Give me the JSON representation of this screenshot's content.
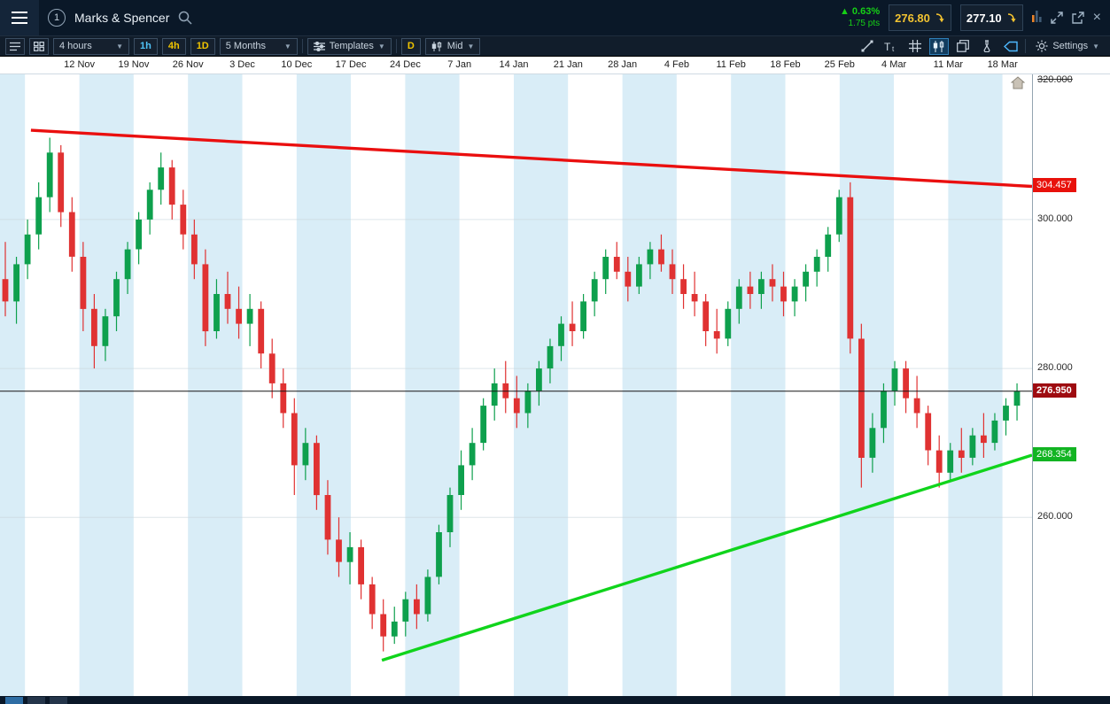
{
  "top_bar": {
    "title": "Marks & Spencer",
    "link_badge": "1",
    "change_pct": "0.63%",
    "change_pts": "1.75 pts",
    "sell": "276.80",
    "buy": "277.10"
  },
  "toolbar": {
    "interval": "4 hours",
    "quick_intervals": [
      "1h",
      "4h",
      "1D"
    ],
    "range": "5 Months",
    "templates": "Templates",
    "period_letter": "D",
    "price_type": "Mid",
    "settings": "Settings"
  },
  "chart_data": {
    "type": "candlestick",
    "title": "Marks & Spencer",
    "x_labels": [
      "12 Nov",
      "19 Nov",
      "26 Nov",
      "3 Dec",
      "10 Dec",
      "17 Dec",
      "24 Dec",
      "7 Jan",
      "14 Jan",
      "21 Jan",
      "28 Jan",
      "4 Feb",
      "11 Feb",
      "18 Feb",
      "25 Feb",
      "4 Mar",
      "11 Mar",
      "18 Mar"
    ],
    "y_ticks": [
      {
        "label": "320.000",
        "value": 320,
        "struck": true
      },
      {
        "label": "300.000",
        "value": 300
      },
      {
        "label": "280.000",
        "value": 280
      },
      {
        "label": "260.000",
        "value": 260
      }
    ],
    "ylim": [
      236,
      319.5
    ],
    "grid": true,
    "colors": {
      "up": "#0ea04d",
      "down": "#e03232",
      "band": "#d9edf7"
    },
    "current_price": 276.95,
    "price_labels": [
      {
        "label": "304.457",
        "value": 304.457,
        "color": "#e8110b",
        "name": "resistance-price-label"
      },
      {
        "label": "276.950",
        "value": 276.95,
        "color": "#9e0b10",
        "bold": true,
        "name": "current-price-label"
      },
      {
        "label": "268.354",
        "value": 268.354,
        "color": "#12b422",
        "name": "support-price-label"
      }
    ],
    "trendlines": [
      {
        "name": "resistance",
        "color": "#ea0f0f",
        "x1": 0.03,
        "price1": 312,
        "x2": 1,
        "price2": 304.457
      },
      {
        "name": "support",
        "color": "#10d41c",
        "x1": 0.37,
        "price1": 240.8,
        "x2": 1,
        "price2": 268.354
      }
    ],
    "candles": [
      [
        292,
        297,
        287,
        289
      ],
      [
        289,
        295,
        286,
        294
      ],
      [
        294,
        300,
        292,
        298
      ],
      [
        298,
        305,
        296,
        303
      ],
      [
        303,
        311,
        301,
        309
      ],
      [
        309,
        310,
        299,
        301
      ],
      [
        301,
        303,
        293,
        295
      ],
      [
        295,
        297,
        285,
        288
      ],
      [
        288,
        290,
        280,
        283
      ],
      [
        283,
        288,
        281,
        287
      ],
      [
        287,
        293,
        285,
        292
      ],
      [
        292,
        297,
        290,
        296
      ],
      [
        296,
        301,
        294,
        300
      ],
      [
        300,
        305,
        298,
        304
      ],
      [
        304,
        309,
        302,
        307
      ],
      [
        307,
        308,
        300,
        302
      ],
      [
        302,
        304,
        296,
        298
      ],
      [
        298,
        300,
        292,
        294
      ],
      [
        294,
        296,
        283,
        285
      ],
      [
        285,
        292,
        284,
        290
      ],
      [
        290,
        293,
        286,
        288
      ],
      [
        288,
        291,
        284,
        286
      ],
      [
        286,
        290,
        283,
        288
      ],
      [
        288,
        289,
        280,
        282
      ],
      [
        282,
        284,
        276,
        278
      ],
      [
        278,
        280,
        272,
        274
      ],
      [
        274,
        276,
        263,
        267
      ],
      [
        267,
        272,
        265,
        270
      ],
      [
        270,
        271,
        261,
        263
      ],
      [
        263,
        265,
        255,
        257
      ],
      [
        257,
        260,
        252,
        254
      ],
      [
        254,
        258,
        251,
        256
      ],
      [
        256,
        257,
        249,
        251
      ],
      [
        251,
        252,
        245,
        247
      ],
      [
        247,
        249,
        242,
        244
      ],
      [
        244,
        248,
        243,
        246
      ],
      [
        246,
        250,
        244,
        249
      ],
      [
        249,
        251,
        245,
        247
      ],
      [
        247,
        253,
        246,
        252
      ],
      [
        252,
        259,
        251,
        258
      ],
      [
        258,
        264,
        256,
        263
      ],
      [
        263,
        269,
        261,
        267
      ],
      [
        267,
        272,
        265,
        270
      ],
      [
        270,
        276,
        269,
        275
      ],
      [
        275,
        280,
        273,
        278
      ],
      [
        278,
        281,
        274,
        276
      ],
      [
        276,
        279,
        272,
        274
      ],
      [
        274,
        278,
        272,
        277
      ],
      [
        277,
        281,
        275,
        280
      ],
      [
        280,
        284,
        278,
        283
      ],
      [
        283,
        287,
        281,
        286
      ],
      [
        286,
        289,
        283,
        285
      ],
      [
        285,
        290,
        284,
        289
      ],
      [
        289,
        293,
        287,
        292
      ],
      [
        292,
        296,
        290,
        295
      ],
      [
        295,
        297,
        292,
        293
      ],
      [
        293,
        295,
        289,
        291
      ],
      [
        291,
        295,
        290,
        294
      ],
      [
        294,
        297,
        292,
        296
      ],
      [
        296,
        298,
        293,
        294
      ],
      [
        294,
        296,
        290,
        292
      ],
      [
        292,
        294,
        288,
        290
      ],
      [
        290,
        293,
        287,
        289
      ],
      [
        289,
        290,
        283,
        285
      ],
      [
        285,
        288,
        282,
        284
      ],
      [
        284,
        289,
        283,
        288
      ],
      [
        288,
        292,
        286,
        291
      ],
      [
        291,
        293,
        288,
        290
      ],
      [
        290,
        293,
        288,
        292
      ],
      [
        292,
        294,
        289,
        291
      ],
      [
        291,
        293,
        287,
        289
      ],
      [
        289,
        292,
        287,
        291
      ],
      [
        291,
        294,
        289,
        293
      ],
      [
        293,
        296,
        291,
        295
      ],
      [
        295,
        299,
        293,
        298
      ],
      [
        298,
        304,
        297,
        303
      ],
      [
        303,
        305,
        282,
        284
      ],
      [
        284,
        286,
        264,
        268
      ],
      [
        268,
        274,
        266,
        272
      ],
      [
        272,
        278,
        270,
        277
      ],
      [
        277,
        281,
        275,
        280
      ],
      [
        280,
        281,
        274,
        276
      ],
      [
        276,
        279,
        272,
        274
      ],
      [
        274,
        275,
        267,
        269
      ],
      [
        269,
        271,
        264,
        266
      ],
      [
        266,
        270,
        265,
        269
      ],
      [
        269,
        272,
        266,
        268
      ],
      [
        268,
        272,
        267,
        271
      ],
      [
        271,
        274,
        268,
        270
      ],
      [
        270,
        274,
        269,
        273
      ],
      [
        273,
        276,
        271,
        275
      ],
      [
        275,
        278,
        273,
        276.95
      ]
    ]
  }
}
